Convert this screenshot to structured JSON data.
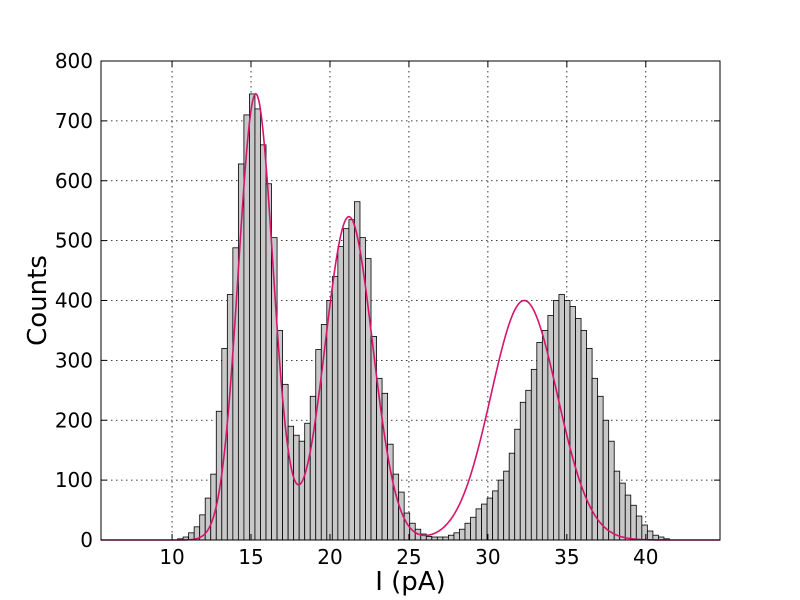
{
  "chart_data": {
    "type": "bar",
    "title": "",
    "xlabel": "I (pA)",
    "ylabel": "Counts",
    "xlim": [
      5.5,
      44.7
    ],
    "ylim": [
      0,
      800
    ],
    "x_ticks": [
      "10",
      "15",
      "20",
      "25",
      "30",
      "35",
      "40"
    ],
    "y_ticks": [
      "0",
      "100",
      "200",
      "300",
      "400",
      "500",
      "600",
      "700",
      "800"
    ],
    "grid": true,
    "bin_width": 0.35,
    "bin_start": 10.0,
    "values": [
      0,
      2,
      5,
      12,
      22,
      42,
      70,
      110,
      215,
      320,
      410,
      488,
      628,
      710,
      745,
      720,
      660,
      595,
      505,
      350,
      260,
      190,
      175,
      165,
      195,
      240,
      318,
      360,
      400,
      440,
      490,
      520,
      535,
      565,
      505,
      470,
      340,
      270,
      245,
      160,
      110,
      80,
      45,
      28,
      18,
      10,
      6,
      5,
      5,
      5,
      8,
      12,
      18,
      28,
      38,
      52,
      60,
      70,
      82,
      100,
      115,
      145,
      185,
      230,
      250,
      285,
      330,
      350,
      375,
      400,
      410,
      400,
      390,
      370,
      350,
      320,
      270,
      240,
      200,
      165,
      115,
      95,
      75,
      58,
      40,
      25,
      15,
      8,
      5,
      2
    ],
    "colors": {
      "bar_fill": "#c8c8c8",
      "bar_edge": "#000000",
      "fit_line": "#d4156e"
    },
    "fit_curve": {
      "name": "",
      "peaks": [
        {
          "center": 15.3,
          "height": 745,
          "sigma": 1.1
        },
        {
          "center": 21.2,
          "height": 540,
          "sigma": 1.5
        },
        {
          "center": 32.3,
          "height": 400,
          "sigma": 2.1
        }
      ]
    }
  }
}
